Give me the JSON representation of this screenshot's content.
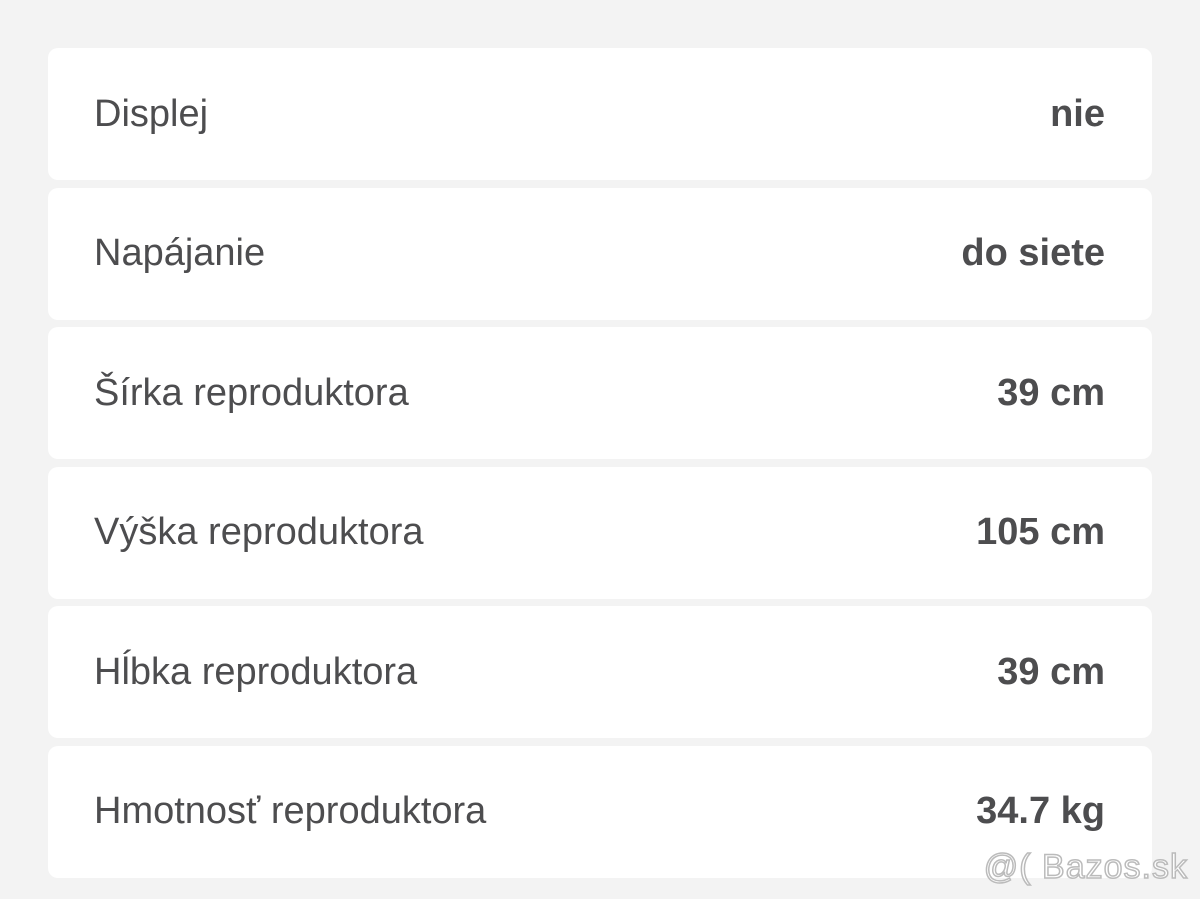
{
  "rows": [
    {
      "label": "Displej",
      "value": "nie"
    },
    {
      "label": "Napájanie",
      "value": "do siete"
    },
    {
      "label": "Šírka reproduktora",
      "value": "39 cm"
    },
    {
      "label": "Výška reproduktora",
      "value": "105 cm"
    },
    {
      "label": "Hĺbka reproduktora",
      "value": "39 cm"
    },
    {
      "label": "Hmotnosť reproduktora",
      "value": "34.7 kg"
    }
  ],
  "watermark": "@( Bazos.sk"
}
